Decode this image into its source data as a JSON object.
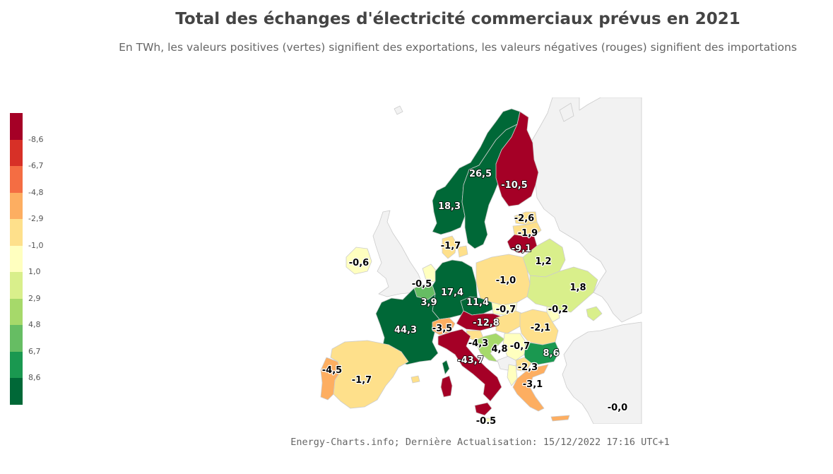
{
  "title": "Total des échanges d'électricité commerciaux prévus en 2021",
  "subtitle": "En TWh, les valeurs positives (vertes) signifient des exportations, les valeurs négatives (rouges) signifient des importations",
  "footer": "Energy-Charts.info; Dernière Actualisation: 15/12/2022 17:16 UTC+1",
  "colors": {
    "background": "#ffffff",
    "non_data_land": "#f2f2f2",
    "border": "#cccccc"
  },
  "legend": {
    "swatch_colors": [
      "#a50026",
      "#d73027",
      "#f46d43",
      "#fdae61",
      "#fee08b",
      "#ffffbf",
      "#d9ef8b",
      "#a6d96a",
      "#66bd63",
      "#1a9850",
      "#006837"
    ],
    "labels": [
      "-8,6",
      "-6,7",
      "-4,8",
      "-2,9",
      "-1,0",
      "1,0",
      "2,9",
      "4,8",
      "6,7",
      "8,6"
    ]
  },
  "regions": [
    {
      "id": "norway",
      "label": "18,3",
      "value": 18.3,
      "color": "#006837",
      "text": "light"
    },
    {
      "id": "sweden",
      "label": "26,5",
      "value": 26.5,
      "color": "#006837",
      "text": "light"
    },
    {
      "id": "finland",
      "label": "-10,5",
      "value": -10.5,
      "color": "#a50026",
      "text": "light"
    },
    {
      "id": "estonia",
      "label": "-2,6",
      "value": -2.6,
      "color": "#fee08b",
      "text": "dark"
    },
    {
      "id": "latvia",
      "label": "-1,9",
      "value": -1.9,
      "color": "#fee08b",
      "text": "dark"
    },
    {
      "id": "lithuania",
      "label": "-9,1",
      "value": -9.1,
      "color": "#a50026",
      "text": "light"
    },
    {
      "id": "denmark",
      "label": "-1,7",
      "value": -1.7,
      "color": "#fee08b",
      "text": "dark"
    },
    {
      "id": "ireland",
      "label": "-0,6",
      "value": -0.6,
      "color": "#ffffbf",
      "text": "dark"
    },
    {
      "id": "netherlands",
      "label": "-0,5",
      "value": -0.5,
      "color": "#ffffbf",
      "text": "dark"
    },
    {
      "id": "belgium",
      "label": "3,9",
      "value": 3.9,
      "color": "#66bd63",
      "text": "light"
    },
    {
      "id": "germany",
      "label": "17,4",
      "value": 17.4,
      "color": "#006837",
      "text": "light"
    },
    {
      "id": "poland",
      "label": "-1,0",
      "value": -1.0,
      "color": "#fee08b",
      "text": "dark"
    },
    {
      "id": "belarus",
      "label": "1,2",
      "value": 1.2,
      "color": "#d9ef8b",
      "text": "dark"
    },
    {
      "id": "ukraine",
      "label": "1,8",
      "value": 1.8,
      "color": "#d9ef8b",
      "text": "dark"
    },
    {
      "id": "france",
      "label": "44,3",
      "value": 44.3,
      "color": "#006837",
      "text": "light"
    },
    {
      "id": "switzerland",
      "label": "-3,5",
      "value": -3.5,
      "color": "#fdae61",
      "text": "dark"
    },
    {
      "id": "czechia",
      "label": "11,4",
      "value": 11.4,
      "color": "#006837",
      "text": "light"
    },
    {
      "id": "slovakia",
      "label": "-0,7",
      "value": -0.7,
      "color": "#ffffbf",
      "text": "dark"
    },
    {
      "id": "moldova",
      "label": "-0,2",
      "value": -0.2,
      "color": "#ffffbf",
      "text": "dark"
    },
    {
      "id": "austria",
      "label": "-12,8",
      "value": -12.8,
      "color": "#a50026",
      "text": "light"
    },
    {
      "id": "hungary",
      "label": "-2,1",
      "value": -2.1,
      "color": "#fee08b",
      "text": "dark"
    },
    {
      "id": "romania",
      "label": "-2,1",
      "value": -2.1,
      "color": "#fee08b",
      "text": "dark"
    },
    {
      "id": "slovenia",
      "label": "-4,3",
      "value": -4.3,
      "color": "#fdae61",
      "text": "dark"
    },
    {
      "id": "croatia",
      "label": "4,8",
      "value": 4.8,
      "color": "#a6d96a",
      "text": "dark"
    },
    {
      "id": "serbia",
      "label": "-0,7",
      "value": -0.7,
      "color": "#ffffbf",
      "text": "dark"
    },
    {
      "id": "bulgaria",
      "label": "8,6",
      "value": 8.6,
      "color": "#1a9850",
      "text": "light"
    },
    {
      "id": "north_macedonia",
      "label": "-2,3",
      "value": -2.3,
      "color": "#fee08b",
      "text": "dark"
    },
    {
      "id": "greece",
      "label": "-3,1",
      "value": -3.1,
      "color": "#fdae61",
      "text": "dark"
    },
    {
      "id": "italy",
      "label": "-43,7",
      "value": -43.7,
      "color": "#a50026",
      "text": "light"
    },
    {
      "id": "spain",
      "label": "-1,7",
      "value": -1.7,
      "color": "#fee08b",
      "text": "dark"
    },
    {
      "id": "portugal",
      "label": "-4,5",
      "value": -4.5,
      "color": "#fdae61",
      "text": "dark"
    },
    {
      "id": "turkey",
      "label": "-0,0",
      "value": 0.0,
      "color": "#f2f2f2",
      "text": "dark"
    },
    {
      "id": "malta",
      "label": "-0,5",
      "value": -0.5,
      "color": "#ffffbf",
      "text": "dark"
    }
  ]
}
